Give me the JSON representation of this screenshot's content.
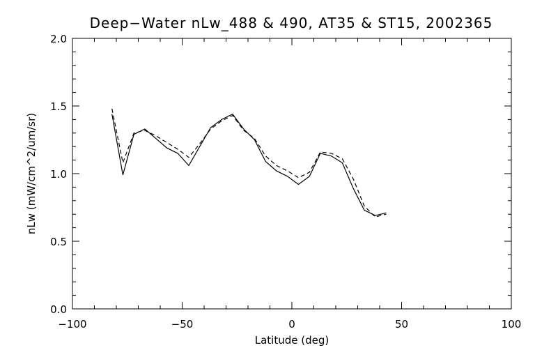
{
  "chart_data": {
    "type": "line",
    "title": "Deep−Water nLw_488 & 490, AT35 & ST15, 2002365",
    "xlabel": "Latitude (deg)",
    "ylabel": "nLw (mW/cm^2/um/sr)",
    "xlim": [
      -100,
      100
    ],
    "ylim": [
      0.0,
      2.0
    ],
    "xticks": [
      -100,
      -50,
      0,
      50,
      100
    ],
    "xtick_labels": [
      "−100",
      "−50",
      "0",
      "50",
      "100"
    ],
    "yticks": [
      0.0,
      0.5,
      1.0,
      1.5,
      2.0
    ],
    "ytick_labels": [
      "0.0",
      "0.5",
      "1.0",
      "1.5",
      "2.0"
    ],
    "grid": false,
    "series": [
      {
        "style": "solid",
        "x": [
          -82,
          -77,
          -72,
          -67,
          -62,
          -57,
          -52,
          -47,
          -42,
          -37,
          -32,
          -27,
          -22,
          -17,
          -12,
          -7,
          -2,
          3,
          8,
          13,
          18,
          23,
          28,
          33,
          38,
          43
        ],
        "y": [
          1.44,
          0.99,
          1.29,
          1.33,
          1.26,
          1.19,
          1.15,
          1.06,
          1.2,
          1.34,
          1.4,
          1.44,
          1.33,
          1.25,
          1.09,
          1.02,
          0.98,
          0.92,
          0.98,
          1.15,
          1.13,
          1.08,
          0.89,
          0.73,
          0.69,
          0.71
        ]
      },
      {
        "style": "dashed",
        "x": [
          -82,
          -77,
          -72,
          -67,
          -62,
          -57,
          -52,
          -47,
          -42,
          -37,
          -32,
          -27,
          -22,
          -17,
          -12,
          -7,
          -2,
          3,
          8,
          13,
          18,
          23,
          28,
          33,
          38,
          43
        ],
        "y": [
          1.48,
          1.08,
          1.3,
          1.32,
          1.28,
          1.23,
          1.18,
          1.12,
          1.22,
          1.33,
          1.39,
          1.43,
          1.32,
          1.26,
          1.13,
          1.06,
          1.02,
          0.97,
          1.01,
          1.16,
          1.15,
          1.11,
          0.96,
          0.76,
          0.68,
          0.7
        ]
      }
    ]
  }
}
